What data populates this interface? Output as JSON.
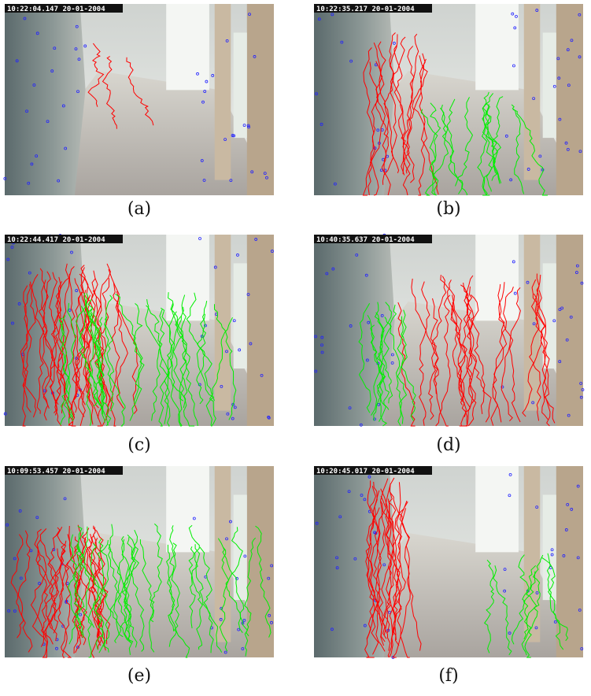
{
  "panels": [
    {
      "caption": "(a)",
      "timestamp": "10:22:04.147 20-01-2004"
    },
    {
      "caption": "(b)",
      "timestamp": "10:22:35.217 20-01-2004"
    },
    {
      "caption": "(c)",
      "timestamp": "10:22:44.417 20-01-2004"
    },
    {
      "caption": "(d)",
      "timestamp": "10:40:35.637 20-01-2004"
    },
    {
      "caption": "(e)",
      "timestamp": "10:09:53.457 20-01-2004"
    },
    {
      "caption": "(f)",
      "timestamp": "10:20:45.017 20-01-2004"
    }
  ]
}
